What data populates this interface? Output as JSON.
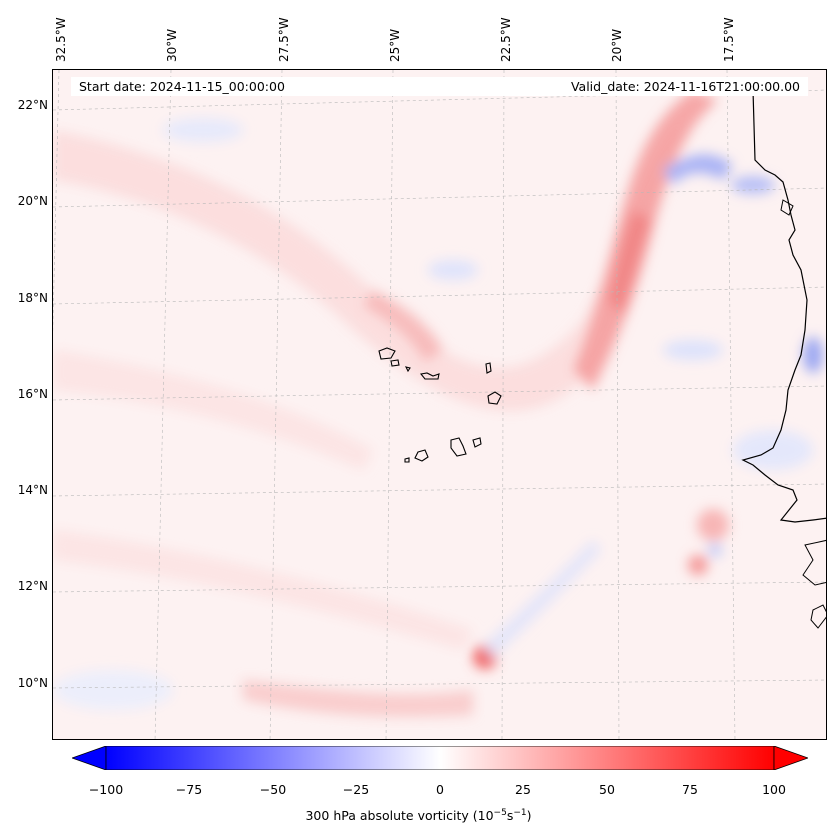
{
  "map": {
    "lon_labels": [
      "32.5°W",
      "30°W",
      "27.5°W",
      "25°W",
      "22.5°W",
      "20°W",
      "17.5°W"
    ],
    "lat_labels": [
      "22°N",
      "20°N",
      "18°N",
      "16°N",
      "14°N",
      "12°N",
      "10°N"
    ],
    "start_date": "Start date: 2024-11-15_00:00:00",
    "valid_date": "Valid_date: 2024-11-16T21:00:00.00"
  },
  "colorbar": {
    "ticks": [
      "−100",
      "−75",
      "−50",
      "−25",
      "0",
      "25",
      "50",
      "75",
      "100"
    ],
    "label_main": "300 hPa absolute vorticity (10",
    "label_exp1": "−5",
    "label_mid": "s",
    "label_exp2": "−1",
    "label_end": ")",
    "min_color": "#0000ff",
    "mid_color": "#ffffff",
    "max_color": "#ff0000"
  }
}
